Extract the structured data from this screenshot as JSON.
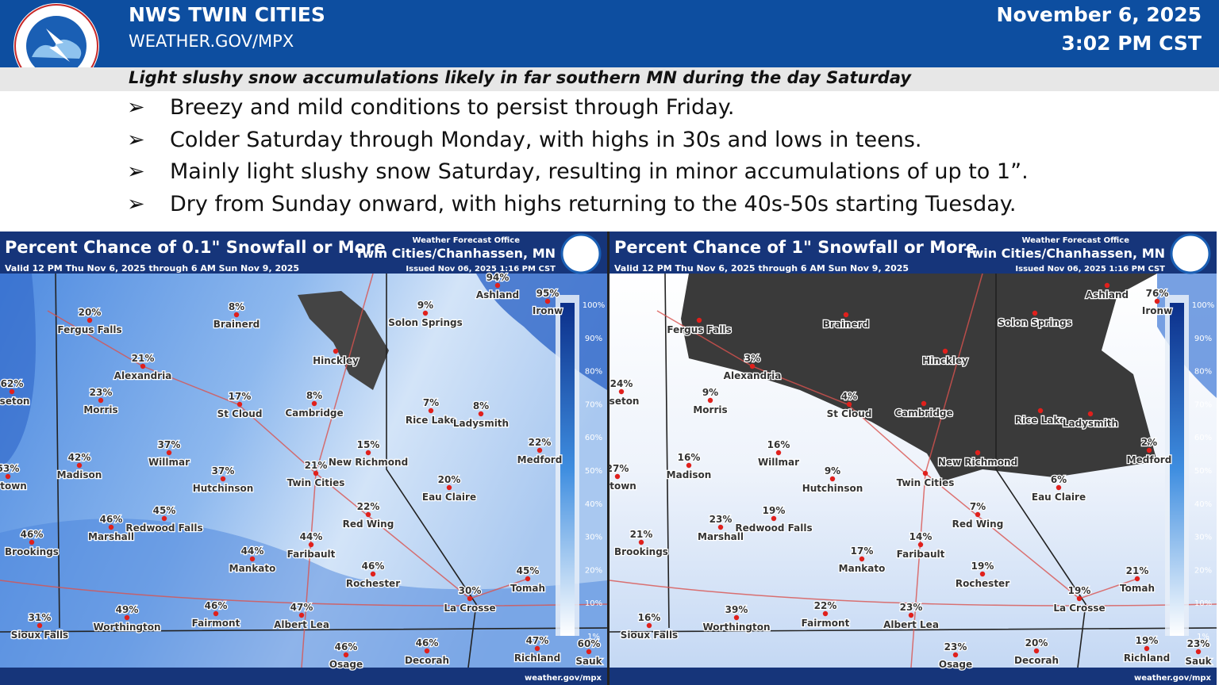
{
  "header": {
    "title": "NWS TWIN CITIES",
    "url": "WEATHER.GOV/MPX",
    "date": "November 6, 2025",
    "time": "3:02 PM CST",
    "headline": "Light slushy snow accumulations likely in far southern MN during the day Saturday"
  },
  "bullets": [
    "Breezy and mild conditions to persist through Friday.",
    "Colder Saturday through Monday, with highs in 30s and lows in teens.",
    "Mainly light slushy snow Saturday, resulting in minor accumulations of up to 1”.",
    "Dry from Sunday onward, with highs returning to the 40s-50s starting Tuesday."
  ],
  "maps": [
    {
      "title": "Percent Chance of 0.1\" Snowfall or More",
      "office": "Weather Forecast Office",
      "office_name": "Twin Cities/Chanhassen, MN",
      "valid": "Valid 12 PM Thu Nov 6, 2025 through 6 AM Sun Nov 9, 2025",
      "issued": "Issued Nov 06, 2025 1:16 PM CST",
      "footer": "weather.gov/mpx",
      "legend": [
        "100%",
        "90%",
        "80%",
        "70%",
        "60%",
        "50%",
        "40%",
        "30%",
        "20%",
        "10%",
        "1%"
      ],
      "cities": [
        {
          "name": "Fergus Falls",
          "pct": "20%"
        },
        {
          "name": "Alexandria",
          "pct": "21%"
        },
        {
          "name": "Morris",
          "pct": "23%"
        },
        {
          "name": "Brainerd",
          "pct": "8%"
        },
        {
          "name": "St Cloud",
          "pct": "17%"
        },
        {
          "name": "Cambridge",
          "pct": "8%"
        },
        {
          "name": "Hinckley"
        },
        {
          "name": "Solon Springs",
          "pct": "9%"
        },
        {
          "name": "Rice Lake",
          "pct": "7%"
        },
        {
          "name": "Ladysmith",
          "pct": "8%"
        },
        {
          "name": "Ashland",
          "pct": "94%"
        },
        {
          "name": "Ironw",
          "pct": "95%"
        },
        {
          "name": "sseton",
          "pct": "62%"
        },
        {
          "name": "Willmar",
          "pct": "37%"
        },
        {
          "name": "Madison",
          "pct": "42%"
        },
        {
          "name": "Hutchinson",
          "pct": "37%"
        },
        {
          "name": "Twin Cities",
          "pct": "21%"
        },
        {
          "name": "New Richmond",
          "pct": "15%"
        },
        {
          "name": "Medford",
          "pct": "22%"
        },
        {
          "name": "ertown",
          "pct": "53%"
        },
        {
          "name": "Eau Claire",
          "pct": "20%"
        },
        {
          "name": "Red Wing",
          "pct": "22%"
        },
        {
          "name": "Marshall",
          "pct": "46%"
        },
        {
          "name": "Redwood Falls",
          "pct": "45%"
        },
        {
          "name": "Brookings",
          "pct": "46%"
        },
        {
          "name": "Faribault",
          "pct": "44%"
        },
        {
          "name": "Mankato",
          "pct": "44%"
        },
        {
          "name": "Rochester",
          "pct": "46%"
        },
        {
          "name": "Tomah",
          "pct": "45%"
        },
        {
          "name": "La Crosse",
          "pct": "30%"
        },
        {
          "name": "Sioux Falls",
          "pct": "31%"
        },
        {
          "name": "Worthington",
          "pct": "49%"
        },
        {
          "name": "Fairmont",
          "pct": "46%"
        },
        {
          "name": "Albert Lea",
          "pct": "47%"
        },
        {
          "name": "Osage",
          "pct": "46%"
        },
        {
          "name": "Decorah",
          "pct": "46%"
        },
        {
          "name": "Richland",
          "pct": "47%"
        },
        {
          "name": "Sauk",
          "pct": "60%"
        }
      ]
    },
    {
      "title": "Percent Chance of 1\" Snowfall or More",
      "office": "Weather Forecast Office",
      "office_name": "Twin Cities/Chanhassen, MN",
      "valid": "Valid 12 PM Thu Nov 6, 2025 through 6 AM Sun Nov 9, 2025",
      "issued": "Issued Nov 06, 2025 1:16 PM CST",
      "footer": "weather.gov/mpx",
      "legend": [
        "100%",
        "90%",
        "80%",
        "70%",
        "60%",
        "50%",
        "40%",
        "30%",
        "20%",
        "10%",
        "1%"
      ],
      "cities": [
        {
          "name": "Fergus Falls"
        },
        {
          "name": "Alexandria",
          "pct": "3%"
        },
        {
          "name": "Morris",
          "pct": "9%"
        },
        {
          "name": "Brainerd"
        },
        {
          "name": "St Cloud",
          "pct": "4%"
        },
        {
          "name": "Cambridge"
        },
        {
          "name": "Hinckley"
        },
        {
          "name": "Solon Springs"
        },
        {
          "name": "Rice Lake"
        },
        {
          "name": "Ladysmith"
        },
        {
          "name": "Ashland"
        },
        {
          "name": "Ironw",
          "pct": "76%"
        },
        {
          "name": "sseton",
          "pct": "24%"
        },
        {
          "name": "Willmar",
          "pct": "16%"
        },
        {
          "name": "Madison",
          "pct": "16%"
        },
        {
          "name": "Hutchinson",
          "pct": "9%"
        },
        {
          "name": "Twin Cities"
        },
        {
          "name": "New Richmond"
        },
        {
          "name": "Medford",
          "pct": "2%"
        },
        {
          "name": "ertown",
          "pct": "27%"
        },
        {
          "name": "Eau Claire",
          "pct": "6%"
        },
        {
          "name": "Red Wing",
          "pct": "7%"
        },
        {
          "name": "Marshall",
          "pct": "23%"
        },
        {
          "name": "Redwood Falls",
          "pct": "19%"
        },
        {
          "name": "Brookings",
          "pct": "21%"
        },
        {
          "name": "Faribault",
          "pct": "14%"
        },
        {
          "name": "Mankato",
          "pct": "17%"
        },
        {
          "name": "Rochester",
          "pct": "19%"
        },
        {
          "name": "Tomah",
          "pct": "21%"
        },
        {
          "name": "La Crosse",
          "pct": "19%"
        },
        {
          "name": "Sioux Falls",
          "pct": "16%"
        },
        {
          "name": "Worthington",
          "pct": "39%"
        },
        {
          "name": "Fairmont",
          "pct": "22%"
        },
        {
          "name": "Albert Lea",
          "pct": "23%"
        },
        {
          "name": "Osage",
          "pct": "23%"
        },
        {
          "name": "Decorah",
          "pct": "20%"
        },
        {
          "name": "Richland",
          "pct": "19%"
        },
        {
          "name": "Sauk",
          "pct": "23%"
        }
      ]
    }
  ]
}
